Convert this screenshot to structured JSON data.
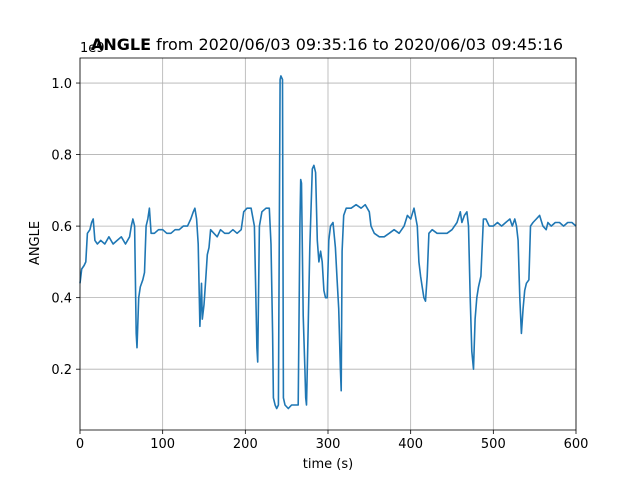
{
  "chart_data": {
    "type": "line",
    "title_bold": "ANGLE",
    "title_rest": " from 2020/06/03 09:35:16 to 2020/06/03 09:45:16",
    "xlabel": "time (s)",
    "ylabel": "ANGLE",
    "y_offset_label": "1e9",
    "xlim": [
      0,
      600
    ],
    "ylim": [
      0.03,
      1.07
    ],
    "x_ticks": [
      0,
      100,
      200,
      300,
      400,
      500,
      600
    ],
    "y_ticks": [
      0.2,
      0.4,
      0.6,
      0.8,
      1.0
    ],
    "x_tick_labels": [
      "0",
      "100",
      "200",
      "300",
      "400",
      "500",
      "600"
    ],
    "y_tick_labels": [
      "0.2",
      "0.4",
      "0.6",
      "0.8",
      "1.0"
    ],
    "grid": true,
    "colors": {
      "line": "#1f77b4"
    },
    "series": [
      {
        "points": [
          [
            0,
            0.44
          ],
          [
            2,
            0.48
          ],
          [
            5,
            0.49
          ],
          [
            7,
            0.5
          ],
          [
            9,
            0.58
          ],
          [
            12,
            0.59
          ],
          [
            14,
            0.61
          ],
          [
            16,
            0.62
          ],
          [
            18,
            0.56
          ],
          [
            21,
            0.55
          ],
          [
            25,
            0.56
          ],
          [
            30,
            0.55
          ],
          [
            35,
            0.57
          ],
          [
            40,
            0.55
          ],
          [
            45,
            0.56
          ],
          [
            50,
            0.57
          ],
          [
            55,
            0.55
          ],
          [
            60,
            0.57
          ],
          [
            62,
            0.6
          ],
          [
            64,
            0.62
          ],
          [
            66,
            0.6
          ],
          [
            68,
            0.3
          ],
          [
            69,
            0.26
          ],
          [
            71,
            0.4
          ],
          [
            73,
            0.43
          ],
          [
            76,
            0.45
          ],
          [
            78,
            0.47
          ],
          [
            80,
            0.6
          ],
          [
            82,
            0.62
          ],
          [
            84,
            0.65
          ],
          [
            86,
            0.58
          ],
          [
            90,
            0.58
          ],
          [
            95,
            0.59
          ],
          [
            100,
            0.59
          ],
          [
            105,
            0.58
          ],
          [
            110,
            0.58
          ],
          [
            115,
            0.59
          ],
          [
            120,
            0.59
          ],
          [
            125,
            0.6
          ],
          [
            130,
            0.6
          ],
          [
            134,
            0.62
          ],
          [
            137,
            0.64
          ],
          [
            139,
            0.65
          ],
          [
            141,
            0.62
          ],
          [
            143,
            0.55
          ],
          [
            145,
            0.32
          ],
          [
            147,
            0.44
          ],
          [
            148,
            0.34
          ],
          [
            150,
            0.38
          ],
          [
            152,
            0.45
          ],
          [
            154,
            0.52
          ],
          [
            156,
            0.54
          ],
          [
            158,
            0.59
          ],
          [
            162,
            0.58
          ],
          [
            166,
            0.57
          ],
          [
            170,
            0.59
          ],
          [
            175,
            0.58
          ],
          [
            180,
            0.58
          ],
          [
            185,
            0.59
          ],
          [
            190,
            0.58
          ],
          [
            195,
            0.59
          ],
          [
            198,
            0.64
          ],
          [
            202,
            0.65
          ],
          [
            207,
            0.65
          ],
          [
            211,
            0.6
          ],
          [
            214,
            0.26
          ],
          [
            215,
            0.22
          ],
          [
            217,
            0.6
          ],
          [
            220,
            0.64
          ],
          [
            225,
            0.65
          ],
          [
            229,
            0.65
          ],
          [
            231,
            0.55
          ],
          [
            233,
            0.3
          ],
          [
            234,
            0.12
          ],
          [
            236,
            0.1
          ],
          [
            238,
            0.09
          ],
          [
            240,
            0.1
          ],
          [
            242,
            1.01
          ],
          [
            243,
            1.02
          ],
          [
            245,
            1.01
          ],
          [
            246,
            0.12
          ],
          [
            248,
            0.1
          ],
          [
            252,
            0.09
          ],
          [
            256,
            0.1
          ],
          [
            260,
            0.1
          ],
          [
            264,
            0.1
          ],
          [
            266,
            0.6
          ],
          [
            267,
            0.73
          ],
          [
            268,
            0.72
          ],
          [
            270,
            0.35
          ],
          [
            272,
            0.2
          ],
          [
            273,
            0.12
          ],
          [
            274,
            0.1
          ],
          [
            276,
            0.32
          ],
          [
            278,
            0.54
          ],
          [
            281,
            0.76
          ],
          [
            283,
            0.77
          ],
          [
            285,
            0.75
          ],
          [
            287,
            0.56
          ],
          [
            289,
            0.5
          ],
          [
            291,
            0.53
          ],
          [
            293,
            0.5
          ],
          [
            295,
            0.42
          ],
          [
            297,
            0.4
          ],
          [
            299,
            0.4
          ],
          [
            301,
            0.56
          ],
          [
            303,
            0.6
          ],
          [
            306,
            0.61
          ],
          [
            309,
            0.54
          ],
          [
            311,
            0.45
          ],
          [
            313,
            0.37
          ],
          [
            315,
            0.2
          ],
          [
            316,
            0.14
          ],
          [
            317,
            0.53
          ],
          [
            319,
            0.63
          ],
          [
            322,
            0.65
          ],
          [
            328,
            0.65
          ],
          [
            334,
            0.66
          ],
          [
            340,
            0.65
          ],
          [
            345,
            0.66
          ],
          [
            350,
            0.64
          ],
          [
            352,
            0.6
          ],
          [
            356,
            0.58
          ],
          [
            362,
            0.57
          ],
          [
            368,
            0.57
          ],
          [
            374,
            0.58
          ],
          [
            380,
            0.59
          ],
          [
            386,
            0.58
          ],
          [
            392,
            0.6
          ],
          [
            396,
            0.63
          ],
          [
            400,
            0.62
          ],
          [
            404,
            0.65
          ],
          [
            408,
            0.6
          ],
          [
            410,
            0.5
          ],
          [
            412,
            0.46
          ],
          [
            414,
            0.43
          ],
          [
            416,
            0.4
          ],
          [
            418,
            0.39
          ],
          [
            420,
            0.46
          ],
          [
            422,
            0.58
          ],
          [
            426,
            0.59
          ],
          [
            432,
            0.58
          ],
          [
            438,
            0.58
          ],
          [
            444,
            0.58
          ],
          [
            450,
            0.59
          ],
          [
            456,
            0.61
          ],
          [
            460,
            0.64
          ],
          [
            462,
            0.61
          ],
          [
            465,
            0.63
          ],
          [
            468,
            0.64
          ],
          [
            470,
            0.6
          ],
          [
            472,
            0.4
          ],
          [
            474,
            0.25
          ],
          [
            476,
            0.2
          ],
          [
            478,
            0.34
          ],
          [
            480,
            0.4
          ],
          [
            482,
            0.43
          ],
          [
            485,
            0.46
          ],
          [
            488,
            0.62
          ],
          [
            491,
            0.62
          ],
          [
            495,
            0.6
          ],
          [
            500,
            0.6
          ],
          [
            505,
            0.61
          ],
          [
            510,
            0.6
          ],
          [
            515,
            0.61
          ],
          [
            520,
            0.62
          ],
          [
            523,
            0.6
          ],
          [
            526,
            0.62
          ],
          [
            528,
            0.6
          ],
          [
            530,
            0.56
          ],
          [
            532,
            0.4
          ],
          [
            534,
            0.3
          ],
          [
            536,
            0.37
          ],
          [
            538,
            0.42
          ],
          [
            540,
            0.44
          ],
          [
            543,
            0.45
          ],
          [
            545,
            0.6
          ],
          [
            548,
            0.61
          ],
          [
            552,
            0.62
          ],
          [
            556,
            0.63
          ],
          [
            560,
            0.6
          ],
          [
            564,
            0.59
          ],
          [
            566,
            0.61
          ],
          [
            570,
            0.6
          ],
          [
            575,
            0.61
          ],
          [
            580,
            0.61
          ],
          [
            585,
            0.6
          ],
          [
            590,
            0.61
          ],
          [
            595,
            0.61
          ],
          [
            600,
            0.6
          ]
        ]
      }
    ]
  }
}
